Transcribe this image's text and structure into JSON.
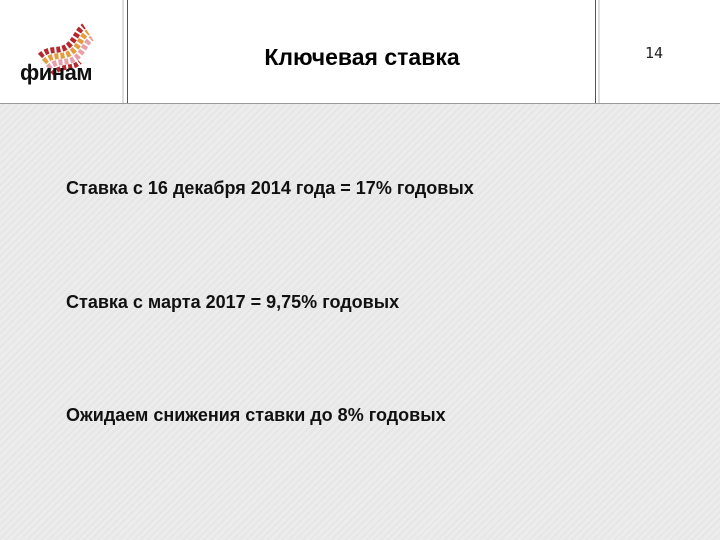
{
  "header": {
    "logo_text": "финам",
    "title": "Ключевая ставка",
    "page_number": "14"
  },
  "body": {
    "lines": [
      "Ставка с 16 декабря 2014 года = 17% годовых",
      "Ставка с марта 2017 = 9,75% годовых",
      "Ожидаем снижения ставки до 8% годовых"
    ]
  },
  "colors": {
    "logo_red": "#b5282e",
    "logo_orange": "#e59a3b",
    "logo_pink": "#e8a0a8"
  }
}
